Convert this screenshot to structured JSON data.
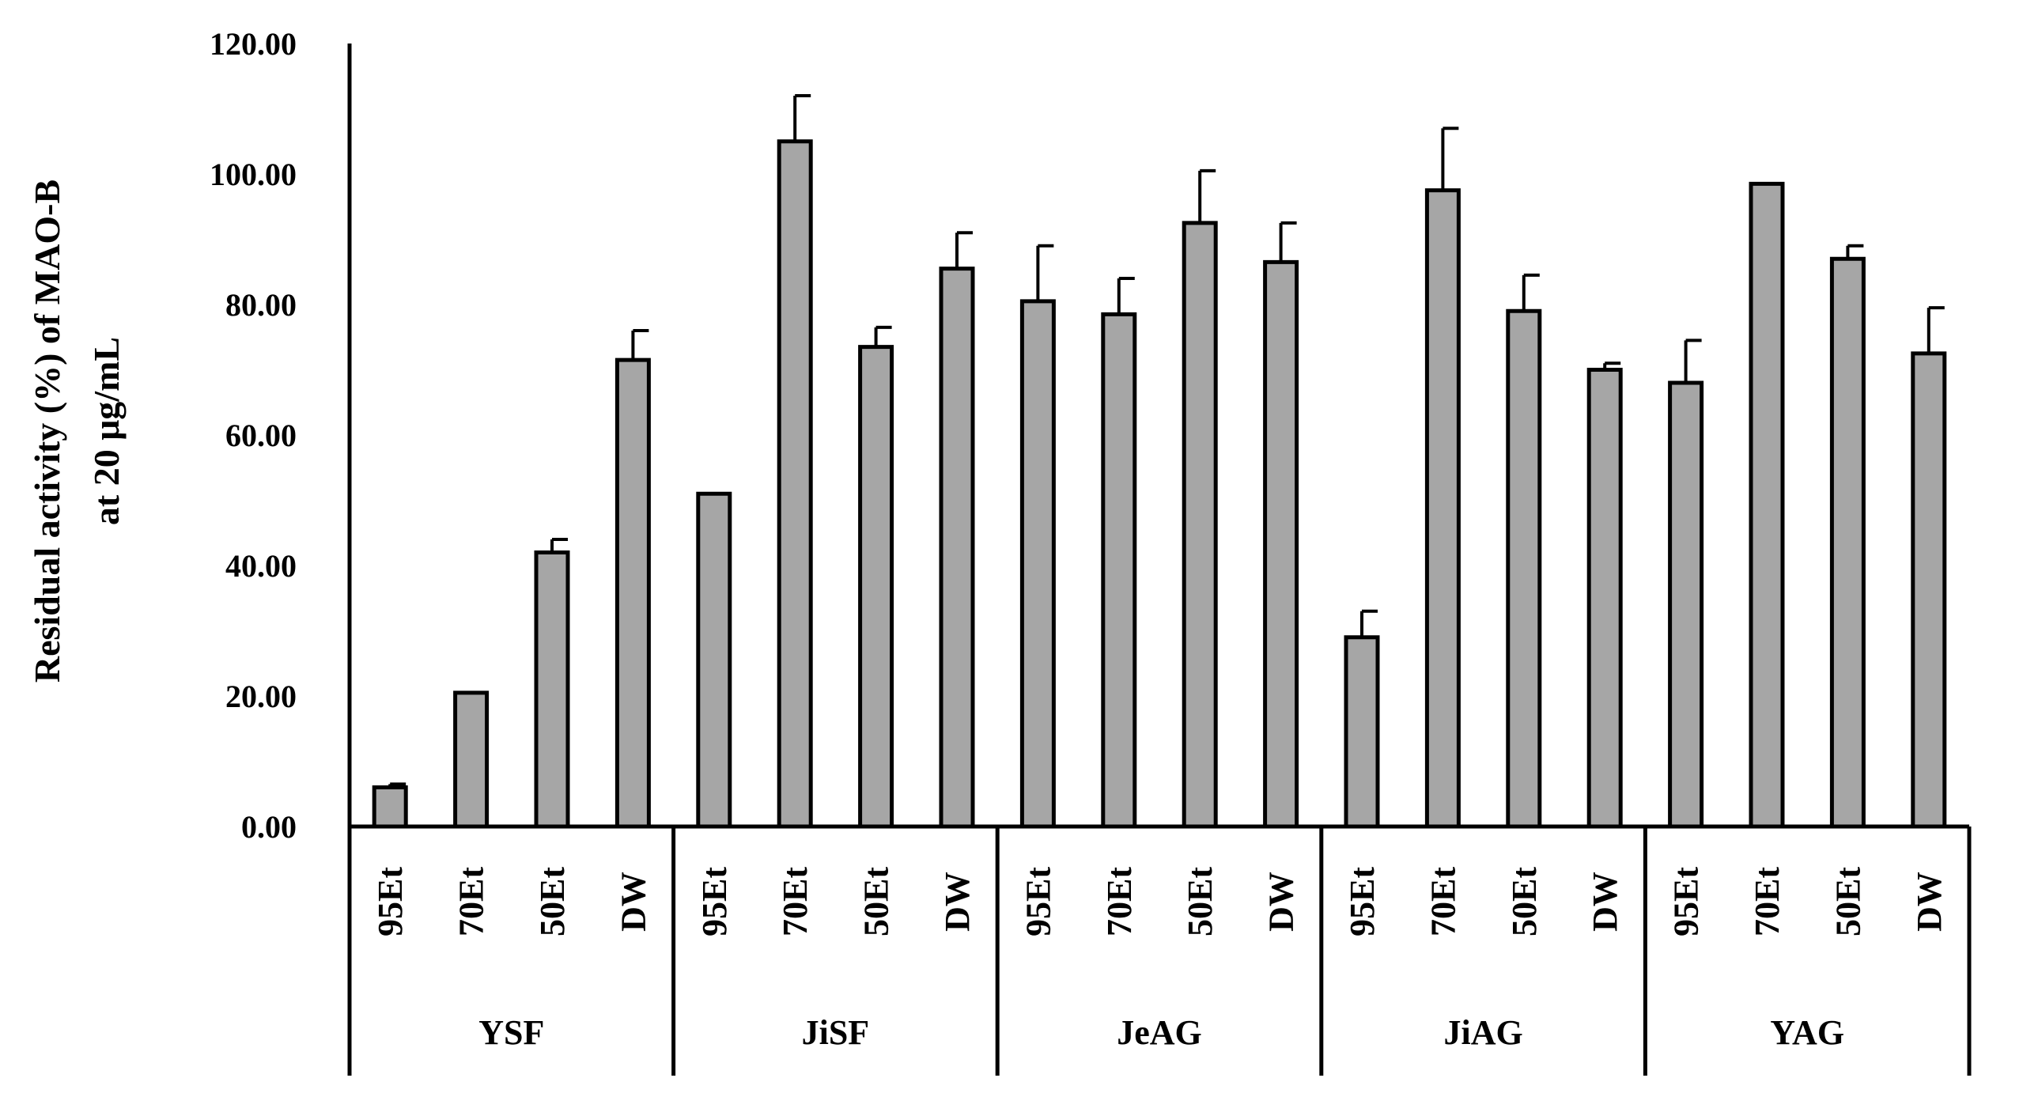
{
  "chart_data": {
    "type": "bar",
    "ylabel_lines": [
      "Residual activity (%) of MAO-B",
      "at 20 μg/mL"
    ],
    "ylim": [
      0,
      120
    ],
    "yticks": [
      "0.00",
      "20.00",
      "40.00",
      "60.00",
      "80.00",
      "100.00",
      "120.00"
    ],
    "grid": false,
    "bar_color": "#a6a6a6",
    "groups": [
      {
        "name": "YSF",
        "categories": [
          "95Et",
          "70Et",
          "50Et",
          "DW"
        ],
        "values": [
          6.0,
          20.5,
          42.0,
          71.5
        ],
        "errors": [
          0.5,
          0.0,
          2.0,
          4.5
        ]
      },
      {
        "name": "JiSF",
        "categories": [
          "95Et",
          "70Et",
          "50Et",
          "DW"
        ],
        "values": [
          51.0,
          105.0,
          73.5,
          85.5
        ],
        "errors": [
          0.0,
          7.0,
          3.0,
          5.5
        ]
      },
      {
        "name": "JeAG",
        "categories": [
          "95Et",
          "70Et",
          "50Et",
          "DW"
        ],
        "values": [
          80.5,
          78.5,
          92.5,
          86.5
        ],
        "errors": [
          8.5,
          5.5,
          8.0,
          6.0
        ]
      },
      {
        "name": "JiAG",
        "categories": [
          "95Et",
          "70Et",
          "50Et",
          "DW"
        ],
        "values": [
          29.0,
          97.5,
          79.0,
          70.0
        ],
        "errors": [
          4.0,
          9.5,
          5.5,
          1.0
        ]
      },
      {
        "name": "YAG",
        "categories": [
          "95Et",
          "70Et",
          "50Et",
          "DW"
        ],
        "values": [
          68.0,
          98.5,
          87.0,
          72.5
        ],
        "errors": [
          6.5,
          0.0,
          2.0,
          7.0
        ]
      }
    ]
  }
}
